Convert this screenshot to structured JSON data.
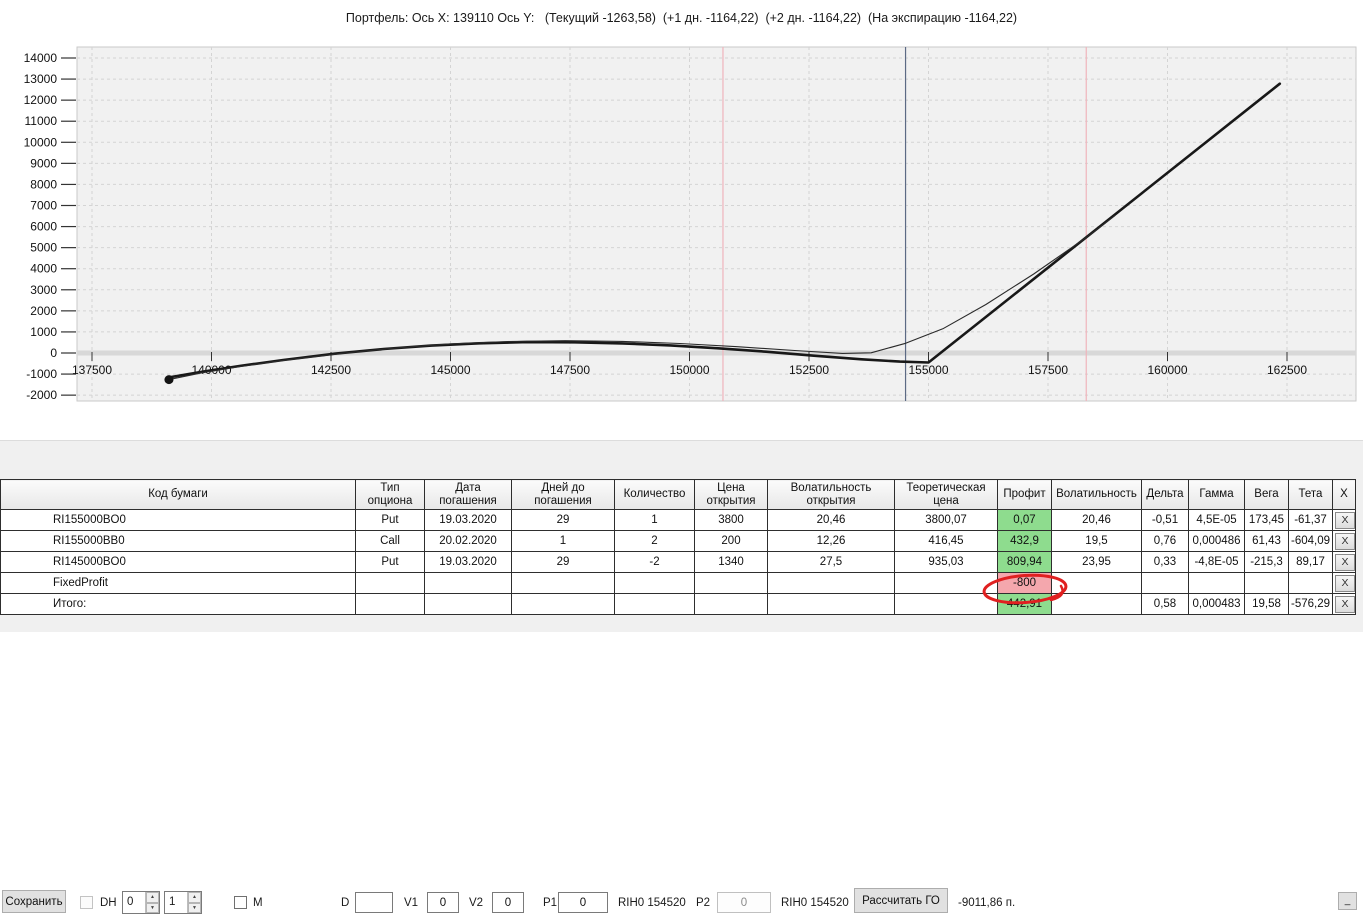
{
  "title": "Портфель: Ось X: 139110 Ось Y:   (Текущий -1263,58)  (+1 дн. -1164,22)  (+2 дн. -1164,22)  (На экспирацию -1164,22)",
  "chart_data": {
    "type": "line",
    "title": "Портфель: Ось X: 139110 Ось Y: (Текущий -1263,58) (+1 дн. -1164,22) (+2 дн. -1164,22) (На экспирацию -1164,22)",
    "xlabel": "",
    "ylabel": "",
    "x_ticks": [
      137500,
      140000,
      142500,
      145000,
      147500,
      150000,
      152500,
      155000,
      157500,
      160000,
      162500
    ],
    "y_ticks": [
      -2000,
      -1000,
      0,
      1000,
      2000,
      3000,
      4000,
      5000,
      6000,
      7000,
      8000,
      9000,
      10000,
      11000,
      12000,
      13000,
      14000
    ],
    "ylim": [
      -2000,
      14000
    ],
    "xlim": [
      137500,
      163900
    ],
    "grid": true,
    "legend_position": "none",
    "cursor_point": {
      "x": 139110,
      "y": -1263.58
    },
    "vlines": [
      {
        "name": "range-low-line",
        "x": 150700,
        "color": "#f0b4bc"
      },
      {
        "name": "current-price-line",
        "x": 154520,
        "color": "#5c6a84"
      },
      {
        "name": "range-high-line",
        "x": 158300,
        "color": "#f0b4bc"
      }
    ],
    "series": [
      {
        "name": "На экспирацию",
        "width": 2.6,
        "color": "#181818",
        "points": [
          [
            139110,
            -1160
          ],
          [
            139800,
            -890
          ],
          [
            140600,
            -610
          ],
          [
            141500,
            -330
          ],
          [
            142600,
            -30
          ],
          [
            143600,
            190
          ],
          [
            144600,
            350
          ],
          [
            145600,
            460
          ],
          [
            146600,
            515
          ],
          [
            147600,
            510
          ],
          [
            148600,
            455
          ],
          [
            149600,
            360
          ],
          [
            150600,
            225
          ],
          [
            151600,
            60
          ],
          [
            152600,
            -130
          ],
          [
            153600,
            -300
          ],
          [
            154400,
            -410
          ],
          [
            155000,
            -450
          ],
          [
            162350,
            12780
          ]
        ]
      },
      {
        "name": "Текущий",
        "width": 1.1,
        "color": "#2a2a2a",
        "points": [
          [
            139110,
            -1264
          ],
          [
            139800,
            -940
          ],
          [
            140600,
            -640
          ],
          [
            141500,
            -350
          ],
          [
            142700,
            -30
          ],
          [
            143800,
            230
          ],
          [
            145000,
            430
          ],
          [
            146200,
            545
          ],
          [
            147400,
            585
          ],
          [
            148600,
            550
          ],
          [
            149800,
            450
          ],
          [
            151000,
            300
          ],
          [
            152200,
            120
          ],
          [
            153200,
            -20
          ],
          [
            153800,
            10
          ],
          [
            154520,
            460
          ],
          [
            155300,
            1150
          ],
          [
            156200,
            2300
          ],
          [
            157200,
            3750
          ],
          [
            158300,
            5480
          ],
          [
            158900,
            6520
          ]
        ]
      }
    ]
  },
  "controls": {
    "save_label": "Сохранить",
    "dh_label": "DH",
    "spinner1_value": "0",
    "spinner2_value": "1",
    "m_label": "M",
    "d_label": "D",
    "d_value": "",
    "v1_label": "V1",
    "v1_value": "0",
    "v2_label": "V2",
    "v2_value": "0",
    "p1_label": "P1",
    "p1_value": "0",
    "future1": "RIH0 154520",
    "p2_label": "P2",
    "p2_value": "0",
    "future2": "RIH0 154520",
    "calc_go_label": "Рассчитать ГО",
    "go_value": "-9011,86 п.",
    "minimize_label": "_"
  },
  "table": {
    "headers": [
      "Код бумаги",
      "Тип опциона",
      "Дата погашения",
      "Дней до погашения",
      "Количество",
      "Цена открытия",
      "Волатильность открытия",
      "Теоретическая цена",
      "Профит",
      "Волатильность",
      "Дельта",
      "Гамма",
      "Вега",
      "Тета",
      "X"
    ],
    "close_label": "X",
    "rows": [
      {
        "cells": [
          "RI155000BO0",
          "Put",
          "19.03.2020",
          "29",
          "1",
          "3800",
          "20,46",
          "3800,07",
          "0,07",
          "20,46",
          "-0,51",
          "4,5E-05",
          "173,45",
          "-61,37"
        ],
        "profit_style": "green",
        "circled": false
      },
      {
        "cells": [
          "RI155000BB0",
          "Call",
          "20.02.2020",
          "1",
          "2",
          "200",
          "12,26",
          "416,45",
          "432,9",
          "19,5",
          "0,76",
          "0,000486",
          "61,43",
          "-604,09"
        ],
        "profit_style": "green",
        "circled": false
      },
      {
        "cells": [
          "RI145000BO0",
          "Put",
          "19.03.2020",
          "29",
          "-2",
          "1340",
          "27,5",
          "935,03",
          "809,94",
          "23,95",
          "0,33",
          "-4,8E-05",
          "-215,3",
          "89,17"
        ],
        "profit_style": "green",
        "circled": false
      },
      {
        "cells": [
          "FixedProfit",
          "",
          "",
          "",
          "",
          "",
          "",
          "",
          "-800",
          "",
          "",
          "",
          "",
          ""
        ],
        "profit_style": "pink",
        "circled": true
      },
      {
        "cells": [
          "Итого:",
          "",
          "",
          "",
          "",
          "",
          "",
          "",
          "442,91",
          "",
          "0,58",
          "0,000483",
          "19,58",
          "-576,29"
        ],
        "profit_style": "green",
        "circled": false
      }
    ]
  },
  "colors": {
    "profit_positive_bg": "#8edc8e",
    "profit_negative_bg": "#f4a7ad",
    "annotation_red": "#e02020",
    "current_price_line": "#5c6a84",
    "range_line": "#f0b4bc"
  }
}
